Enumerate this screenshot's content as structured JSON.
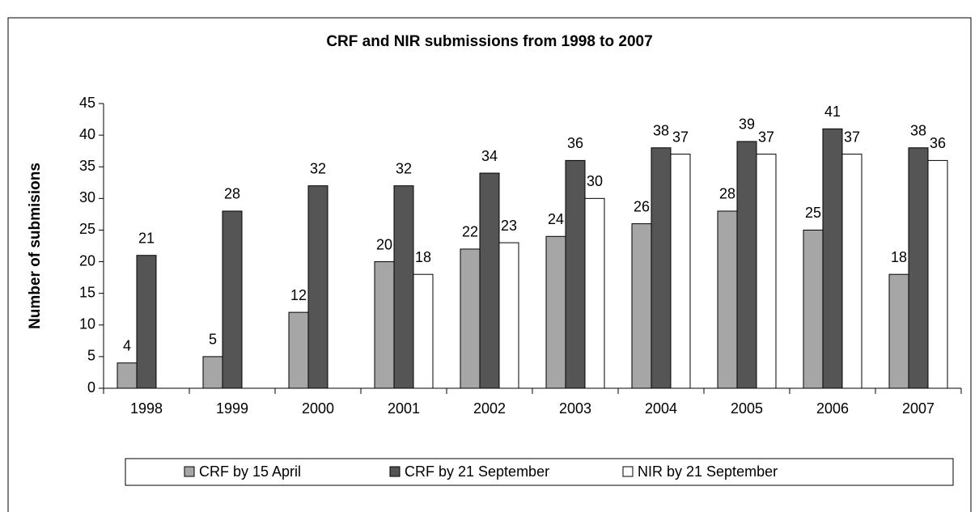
{
  "chart_data": {
    "type": "bar",
    "title": "CRF and NIR submissions from 1998 to 2007",
    "y_label": "Number of submisions",
    "categories": [
      "1998",
      "1999",
      "2000",
      "2001",
      "2002",
      "2003",
      "2004",
      "2005",
      "2006",
      "2007"
    ],
    "series": [
      {
        "name": "CRF by 15 April",
        "color": "#a6a6a6",
        "values": [
          4,
          5,
          12,
          20,
          22,
          24,
          26,
          28,
          25,
          18
        ]
      },
      {
        "name": "CRF by 21 September",
        "color": "#555555",
        "values": [
          21,
          28,
          32,
          32,
          34,
          36,
          38,
          39,
          41,
          38
        ]
      },
      {
        "name": "NIR by 21 September",
        "color": "#ffffff",
        "values": [
          null,
          null,
          null,
          18,
          23,
          30,
          37,
          37,
          37,
          36
        ]
      }
    ],
    "ylim": [
      0,
      45
    ],
    "yticks": [
      0,
      5,
      10,
      15,
      20,
      25,
      30,
      35,
      40,
      45
    ],
    "grid": false,
    "legend": "bottom"
  }
}
